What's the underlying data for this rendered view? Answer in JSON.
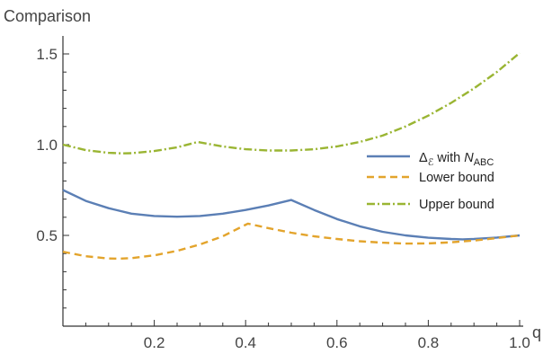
{
  "chart_data": {
    "type": "line",
    "title": "",
    "xlabel": "q",
    "ylabel": "Comparison",
    "xlim": [
      0,
      1
    ],
    "ylim": [
      0,
      1.6
    ],
    "grid": false,
    "legend_position": "right",
    "x_ticks": [
      {
        "value": 0.2,
        "label": "0.2"
      },
      {
        "value": 0.4,
        "label": "0.4"
      },
      {
        "value": 0.6,
        "label": "0.6"
      },
      {
        "value": 0.8,
        "label": "0.8"
      },
      {
        "value": 1.0,
        "label": "1.0"
      }
    ],
    "y_ticks": [
      {
        "value": 0.5,
        "label": "0.5"
      },
      {
        "value": 1.0,
        "label": "1.0"
      },
      {
        "value": 1.5,
        "label": "1.5"
      }
    ],
    "series": [
      {
        "legend_main": "Δ",
        "legend_sub": "ℰ",
        "legend_mid": " with ",
        "legend_n": "N",
        "legend_n_sub": "ABC",
        "color": "#5b7fb5",
        "dash": "solid",
        "points": [
          [
            0.0,
            0.75
          ],
          [
            0.05,
            0.69
          ],
          [
            0.1,
            0.65
          ],
          [
            0.15,
            0.62
          ],
          [
            0.2,
            0.607
          ],
          [
            0.25,
            0.603
          ],
          [
            0.3,
            0.607
          ],
          [
            0.35,
            0.62
          ],
          [
            0.4,
            0.64
          ],
          [
            0.45,
            0.665
          ],
          [
            0.5,
            0.695
          ],
          [
            0.55,
            0.64
          ],
          [
            0.6,
            0.59
          ],
          [
            0.65,
            0.55
          ],
          [
            0.7,
            0.52
          ],
          [
            0.75,
            0.5
          ],
          [
            0.8,
            0.487
          ],
          [
            0.85,
            0.48
          ],
          [
            0.875,
            0.478
          ],
          [
            0.9,
            0.48
          ],
          [
            0.95,
            0.488
          ],
          [
            1.0,
            0.5
          ]
        ]
      },
      {
        "name": "Lower bound",
        "color": "#e3a42c",
        "dash": "dashed",
        "points": [
          [
            0.0,
            0.41
          ],
          [
            0.05,
            0.385
          ],
          [
            0.1,
            0.373
          ],
          [
            0.125,
            0.372
          ],
          [
            0.15,
            0.375
          ],
          [
            0.2,
            0.39
          ],
          [
            0.25,
            0.415
          ],
          [
            0.3,
            0.45
          ],
          [
            0.35,
            0.495
          ],
          [
            0.405,
            0.565
          ],
          [
            0.45,
            0.54
          ],
          [
            0.5,
            0.515
          ],
          [
            0.55,
            0.495
          ],
          [
            0.6,
            0.48
          ],
          [
            0.65,
            0.468
          ],
          [
            0.7,
            0.46
          ],
          [
            0.75,
            0.455
          ],
          [
            0.8,
            0.456
          ],
          [
            0.85,
            0.462
          ],
          [
            0.9,
            0.472
          ],
          [
            0.95,
            0.485
          ],
          [
            1.0,
            0.5
          ]
        ]
      },
      {
        "name": "Upper bound",
        "color": "#9ab533",
        "dash": "dotdash",
        "points": [
          [
            0.0,
            1.0
          ],
          [
            0.05,
            0.97
          ],
          [
            0.1,
            0.955
          ],
          [
            0.13,
            0.952
          ],
          [
            0.15,
            0.953
          ],
          [
            0.2,
            0.965
          ],
          [
            0.25,
            0.985
          ],
          [
            0.295,
            1.015
          ],
          [
            0.35,
            0.99
          ],
          [
            0.4,
            0.975
          ],
          [
            0.45,
            0.968
          ],
          [
            0.5,
            0.968
          ],
          [
            0.55,
            0.975
          ],
          [
            0.6,
            0.99
          ],
          [
            0.65,
            1.015
          ],
          [
            0.7,
            1.05
          ],
          [
            0.75,
            1.1
          ],
          [
            0.8,
            1.16
          ],
          [
            0.85,
            1.23
          ],
          [
            0.9,
            1.31
          ],
          [
            0.95,
            1.4
          ],
          [
            1.0,
            1.505
          ]
        ]
      }
    ]
  }
}
